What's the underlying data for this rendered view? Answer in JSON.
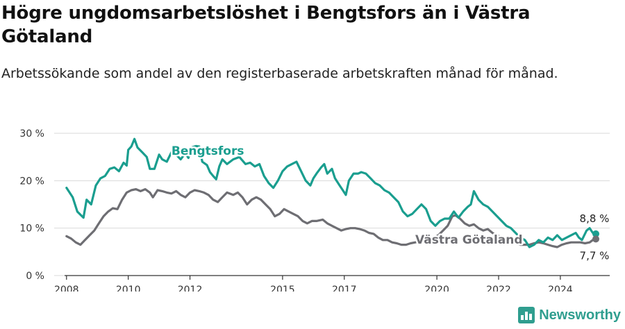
{
  "title": "Högre ungdomsarbetslöshet i Bengtsfors än i Västra Götaland",
  "subtitle": "Arbetssökande som andel av den registerbaserade arbetskraften månad för månad.",
  "brand": "Newsworthy",
  "colors": {
    "bengtsfors": "#1a9e8f",
    "vastra": "#6e6e73",
    "grid": "#d9d9d9",
    "axis": "#333333"
  },
  "chart_data": {
    "type": "line",
    "x_range": [
      2007.6,
      2025.6
    ],
    "ylim": [
      0,
      30
    ],
    "y_ticks": [
      {
        "value": 0,
        "label": "0 %"
      },
      {
        "value": 10,
        "label": "10 %"
      },
      {
        "value": 20,
        "label": "20 %"
      },
      {
        "value": 30,
        "label": "30 %"
      }
    ],
    "x_ticks": [
      {
        "value": 2008,
        "label": "2008"
      },
      {
        "value": 2010,
        "label": "2010"
      },
      {
        "value": 2012,
        "label": "2012"
      },
      {
        "value": 2015,
        "label": "2015"
      },
      {
        "value": 2017,
        "label": "2017"
      },
      {
        "value": 2020,
        "label": "2020"
      },
      {
        "value": 2022,
        "label": "2022"
      },
      {
        "value": 2024,
        "label": "2024"
      }
    ],
    "series": [
      {
        "name": "Bengtsfors",
        "label_x": 2011.4,
        "label_y": 25.5,
        "end_label": "8,8 %",
        "points": [
          [
            2008.0,
            18.5
          ],
          [
            2008.2,
            16.5
          ],
          [
            2008.35,
            13.5
          ],
          [
            2008.55,
            12.2
          ],
          [
            2008.65,
            16
          ],
          [
            2008.8,
            15
          ],
          [
            2008.95,
            19
          ],
          [
            2009.1,
            20.5
          ],
          [
            2009.25,
            21
          ],
          [
            2009.4,
            22.5
          ],
          [
            2009.55,
            22.8
          ],
          [
            2009.7,
            22
          ],
          [
            2009.85,
            23.8
          ],
          [
            2009.95,
            23.2
          ],
          [
            2010.0,
            26.5
          ],
          [
            2010.1,
            27.2
          ],
          [
            2010.2,
            28.8
          ],
          [
            2010.3,
            27
          ],
          [
            2010.45,
            26
          ],
          [
            2010.6,
            25
          ],
          [
            2010.7,
            22.5
          ],
          [
            2010.85,
            22.5
          ],
          [
            2011.0,
            25.5
          ],
          [
            2011.1,
            24.5
          ],
          [
            2011.25,
            24
          ],
          [
            2011.4,
            26
          ],
          [
            2011.55,
            25.5
          ],
          [
            2011.7,
            24.5
          ],
          [
            2011.85,
            25.8
          ],
          [
            2011.95,
            24.8
          ],
          [
            2012.05,
            27
          ],
          [
            2012.2,
            27.3
          ],
          [
            2012.3,
            27.2
          ],
          [
            2012.4,
            24
          ],
          [
            2012.55,
            23.3
          ],
          [
            2012.65,
            21.8
          ],
          [
            2012.75,
            21
          ],
          [
            2012.85,
            20.3
          ],
          [
            2012.95,
            23
          ],
          [
            2013.05,
            24.5
          ],
          [
            2013.2,
            23.5
          ],
          [
            2013.4,
            24.5
          ],
          [
            2013.6,
            25
          ],
          [
            2013.8,
            23.5
          ],
          [
            2013.95,
            23.8
          ],
          [
            2014.1,
            23
          ],
          [
            2014.25,
            23.5
          ],
          [
            2014.4,
            21
          ],
          [
            2014.55,
            19.5
          ],
          [
            2014.7,
            18.5
          ],
          [
            2014.85,
            20
          ],
          [
            2015.0,
            22
          ],
          [
            2015.15,
            23
          ],
          [
            2015.3,
            23.5
          ],
          [
            2015.45,
            24
          ],
          [
            2015.6,
            22
          ],
          [
            2015.75,
            20
          ],
          [
            2015.9,
            19
          ],
          [
            2016.0,
            20.5
          ],
          [
            2016.1,
            21.5
          ],
          [
            2016.25,
            22.8
          ],
          [
            2016.35,
            23.5
          ],
          [
            2016.45,
            21.5
          ],
          [
            2016.6,
            22.5
          ],
          [
            2016.7,
            20.5
          ],
          [
            2016.85,
            19
          ],
          [
            2016.95,
            18
          ],
          [
            2017.05,
            17
          ],
          [
            2017.15,
            20
          ],
          [
            2017.3,
            21.5
          ],
          [
            2017.45,
            21.5
          ],
          [
            2017.55,
            21.8
          ],
          [
            2017.7,
            21.5
          ],
          [
            2017.85,
            20.5
          ],
          [
            2018.0,
            19.5
          ],
          [
            2018.15,
            19
          ],
          [
            2018.3,
            18
          ],
          [
            2018.45,
            17.5
          ],
          [
            2018.6,
            16.5
          ],
          [
            2018.75,
            15.5
          ],
          [
            2018.9,
            13.5
          ],
          [
            2019.05,
            12.5
          ],
          [
            2019.2,
            13
          ],
          [
            2019.35,
            14
          ],
          [
            2019.5,
            15
          ],
          [
            2019.65,
            14
          ],
          [
            2019.8,
            11.5
          ],
          [
            2019.95,
            10.5
          ],
          [
            2020.1,
            11.5
          ],
          [
            2020.25,
            12
          ],
          [
            2020.4,
            12
          ],
          [
            2020.55,
            13.5
          ],
          [
            2020.7,
            12.2
          ],
          [
            2020.85,
            13.5
          ],
          [
            2021.0,
            14.5
          ],
          [
            2021.1,
            15
          ],
          [
            2021.2,
            17.8
          ],
          [
            2021.35,
            16
          ],
          [
            2021.5,
            15
          ],
          [
            2021.65,
            14.5
          ],
          [
            2021.8,
            13.5
          ],
          [
            2021.95,
            12.5
          ],
          [
            2022.1,
            11.5
          ],
          [
            2022.25,
            10.5
          ],
          [
            2022.4,
            10
          ],
          [
            2022.55,
            9
          ],
          [
            2022.7,
            8
          ],
          [
            2022.85,
            7.5
          ],
          [
            2023.0,
            6
          ],
          [
            2023.15,
            6.5
          ],
          [
            2023.3,
            7.5
          ],
          [
            2023.45,
            7
          ],
          [
            2023.6,
            8
          ],
          [
            2023.75,
            7.5
          ],
          [
            2023.9,
            8.5
          ],
          [
            2024.05,
            7.5
          ],
          [
            2024.2,
            8
          ],
          [
            2024.35,
            8.5
          ],
          [
            2024.5,
            9
          ],
          [
            2024.6,
            8
          ],
          [
            2024.7,
            7.5
          ],
          [
            2024.85,
            9.5
          ],
          [
            2024.95,
            10
          ],
          [
            2025.05,
            9
          ],
          [
            2025.15,
            8.8
          ]
        ]
      },
      {
        "name": "Västra Götaland",
        "label_x": 2019.3,
        "label_y": 6.7,
        "end_label": "7,7 %",
        "points": [
          [
            2008.0,
            8.3
          ],
          [
            2008.15,
            7.8
          ],
          [
            2008.3,
            7
          ],
          [
            2008.45,
            6.5
          ],
          [
            2008.6,
            7.5
          ],
          [
            2008.75,
            8.5
          ],
          [
            2008.9,
            9.5
          ],
          [
            2009.05,
            11
          ],
          [
            2009.2,
            12.5
          ],
          [
            2009.35,
            13.5
          ],
          [
            2009.5,
            14.2
          ],
          [
            2009.65,
            14
          ],
          [
            2009.8,
            16
          ],
          [
            2009.95,
            17.5
          ],
          [
            2010.1,
            18
          ],
          [
            2010.25,
            18.2
          ],
          [
            2010.4,
            17.8
          ],
          [
            2010.55,
            18.2
          ],
          [
            2010.7,
            17.5
          ],
          [
            2010.8,
            16.5
          ],
          [
            2010.95,
            18
          ],
          [
            2011.1,
            17.8
          ],
          [
            2011.25,
            17.5
          ],
          [
            2011.4,
            17.3
          ],
          [
            2011.55,
            17.8
          ],
          [
            2011.7,
            17
          ],
          [
            2011.85,
            16.5
          ],
          [
            2012.0,
            17.5
          ],
          [
            2012.15,
            18
          ],
          [
            2012.3,
            17.8
          ],
          [
            2012.45,
            17.5
          ],
          [
            2012.6,
            17
          ],
          [
            2012.75,
            16
          ],
          [
            2012.9,
            15.5
          ],
          [
            2013.05,
            16.5
          ],
          [
            2013.2,
            17.5
          ],
          [
            2013.4,
            17
          ],
          [
            2013.55,
            17.5
          ],
          [
            2013.7,
            16.5
          ],
          [
            2013.85,
            15
          ],
          [
            2014.0,
            16
          ],
          [
            2014.15,
            16.5
          ],
          [
            2014.3,
            16
          ],
          [
            2014.45,
            15
          ],
          [
            2014.6,
            14
          ],
          [
            2014.75,
            12.5
          ],
          [
            2014.9,
            13
          ],
          [
            2015.05,
            14
          ],
          [
            2015.2,
            13.5
          ],
          [
            2015.35,
            13
          ],
          [
            2015.5,
            12.5
          ],
          [
            2015.65,
            11.5
          ],
          [
            2015.8,
            11
          ],
          [
            2015.95,
            11.5
          ],
          [
            2016.1,
            11.5
          ],
          [
            2016.3,
            11.8
          ],
          [
            2016.45,
            11
          ],
          [
            2016.6,
            10.5
          ],
          [
            2016.75,
            10
          ],
          [
            2016.9,
            9.5
          ],
          [
            2017.05,
            9.8
          ],
          [
            2017.2,
            10
          ],
          [
            2017.35,
            10
          ],
          [
            2017.5,
            9.8
          ],
          [
            2017.65,
            9.5
          ],
          [
            2017.8,
            9
          ],
          [
            2017.95,
            8.8
          ],
          [
            2018.1,
            8
          ],
          [
            2018.25,
            7.5
          ],
          [
            2018.4,
            7.5
          ],
          [
            2018.55,
            7
          ],
          [
            2018.7,
            6.8
          ],
          [
            2018.85,
            6.5
          ],
          [
            2019.0,
            6.5
          ],
          [
            2019.15,
            6.8
          ],
          [
            2019.3,
            7
          ],
          [
            2019.45,
            7.2
          ],
          [
            2019.6,
            7.5
          ],
          [
            2019.75,
            7.8
          ],
          [
            2019.9,
            8
          ],
          [
            2020.05,
            8.5
          ],
          [
            2020.2,
            9.5
          ],
          [
            2020.35,
            10.5
          ],
          [
            2020.5,
            12.5
          ],
          [
            2020.6,
            12.7
          ],
          [
            2020.75,
            12
          ],
          [
            2020.9,
            11
          ],
          [
            2021.05,
            10.5
          ],
          [
            2021.2,
            10.8
          ],
          [
            2021.35,
            10
          ],
          [
            2021.5,
            9.5
          ],
          [
            2021.65,
            9.8
          ],
          [
            2021.8,
            9
          ],
          [
            2021.95,
            8.5
          ],
          [
            2022.1,
            8
          ],
          [
            2022.25,
            7.5
          ],
          [
            2022.4,
            7.5
          ],
          [
            2022.55,
            7
          ],
          [
            2022.7,
            6.5
          ],
          [
            2022.85,
            6.5
          ],
          [
            2023.0,
            6.5
          ],
          [
            2023.15,
            6.8
          ],
          [
            2023.3,
            7
          ],
          [
            2023.45,
            6.8
          ],
          [
            2023.6,
            6.5
          ],
          [
            2023.75,
            6.2
          ],
          [
            2023.9,
            6
          ],
          [
            2024.05,
            6.5
          ],
          [
            2024.2,
            6.8
          ],
          [
            2024.35,
            7
          ],
          [
            2024.5,
            7
          ],
          [
            2024.65,
            7
          ],
          [
            2024.8,
            6.8
          ],
          [
            2024.95,
            7
          ],
          [
            2025.05,
            7.5
          ],
          [
            2025.15,
            7.7
          ]
        ]
      }
    ]
  }
}
